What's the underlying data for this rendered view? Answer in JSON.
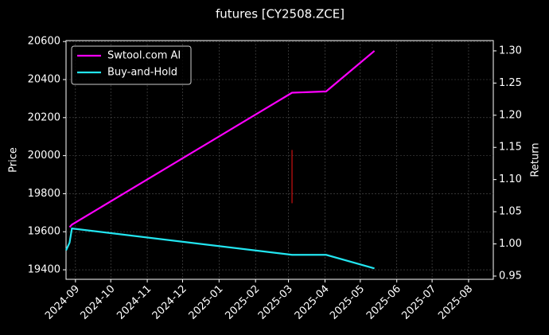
{
  "chart_data": {
    "type": "line",
    "title": "futures [CY2508.ZCE]",
    "ylabel": "Price",
    "y2label": "Return",
    "x": [
      "2024-08-24",
      "2024-08-27",
      "2024-08-29",
      "2025-03-04",
      "2025-04-02",
      "2025-05-13"
    ],
    "series": [
      {
        "name": "Swtool.com AI",
        "color": "#ff00ff",
        "axis": "y2",
        "values": [
          null,
          1.026,
          1.03,
          1.235,
          1.237,
          1.3
        ]
      },
      {
        "name": "Buy-and-Hold",
        "color": "#22e5f0",
        "axis": "y2",
        "values": [
          0.99,
          1.002,
          1.024,
          0.983,
          0.983,
          0.962
        ]
      }
    ],
    "range": {
      "x": "2025-03-04",
      "low": 19750,
      "high": 20030,
      "color": "#cc1111"
    },
    "xlim": [
      "2024-08-24",
      "2025-08-22"
    ],
    "xticks": [
      {
        "value": "2024-09-01",
        "label": "2024-09"
      },
      {
        "value": "2024-10-01",
        "label": "2024-10"
      },
      {
        "value": "2024-11-01",
        "label": "2024-11"
      },
      {
        "value": "2024-12-01",
        "label": "2024-12"
      },
      {
        "value": "2025-01-01",
        "label": "2025-01"
      },
      {
        "value": "2025-02-01",
        "label": "2025-02"
      },
      {
        "value": "2025-03-01",
        "label": "2025-03"
      },
      {
        "value": "2025-04-01",
        "label": "2025-04"
      },
      {
        "value": "2025-05-01",
        "label": "2025-05"
      },
      {
        "value": "2025-06-01",
        "label": "2025-06"
      },
      {
        "value": "2025-07-01",
        "label": "2025-07"
      },
      {
        "value": "2025-08-01",
        "label": "2025-08"
      }
    ],
    "ylim": [
      19350,
      20605
    ],
    "yticks": [
      19400,
      19600,
      19800,
      20000,
      20200,
      20400,
      20600
    ],
    "y2lim": [
      0.945,
      1.316
    ],
    "y2ticks": [
      0.95,
      {
        "value": 1,
        "label": "1.00"
      },
      1.05,
      {
        "value": 1.1,
        "label": "1.10"
      },
      1.15,
      {
        "value": 1.2,
        "label": "1.20"
      },
      1.25,
      {
        "value": 1.3,
        "label": "1.30"
      }
    ],
    "grid": true,
    "legend": "upper left"
  }
}
